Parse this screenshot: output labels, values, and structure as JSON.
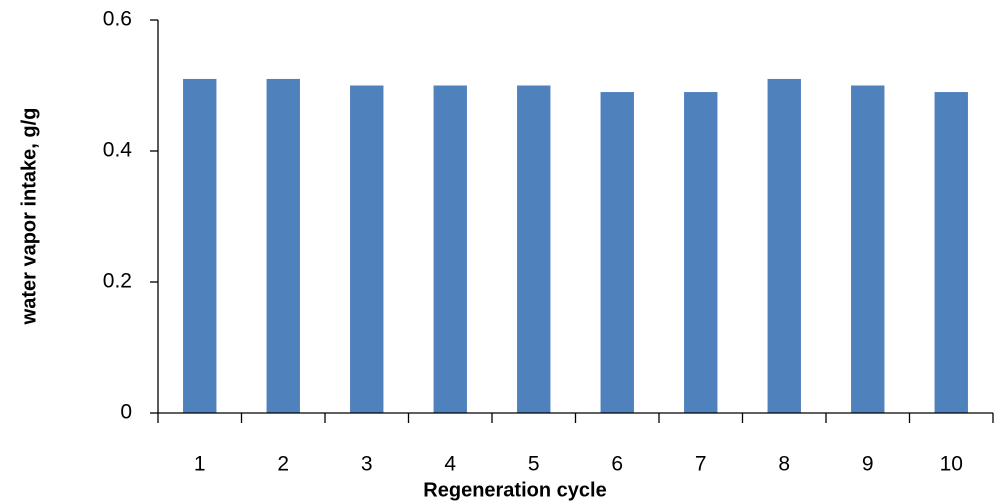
{
  "chart_data": {
    "type": "bar",
    "y_label": "water vapor intake, g/g",
    "x_label": "Regeneration cycle",
    "categories": [
      "1",
      "2",
      "3",
      "4",
      "5",
      "6",
      "7",
      "8",
      "9",
      "10"
    ],
    "values": [
      0.51,
      0.51,
      0.5,
      0.5,
      0.5,
      0.49,
      0.49,
      0.51,
      0.5,
      0.49
    ],
    "color": "#4f81bd",
    "ylim": [
      0,
      0.6
    ],
    "yticks": [
      0,
      0.2,
      0.4,
      0.6
    ],
    "grid": false
  }
}
